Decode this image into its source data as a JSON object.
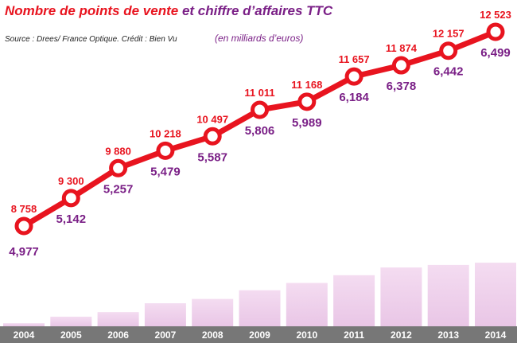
{
  "header": {
    "title_part1": "Nombre de points de vente",
    "title_part2": "et chiffre d’affaires TTC",
    "source": "Source : Drees/ France Optique. Crédit : Bien Vu",
    "unit_note": "(en milliards d’euros)"
  },
  "colors": {
    "bar": "#e9c6e6",
    "bar_top": "#f4dcf1",
    "line": "#e8141f",
    "marker_fill": "#ffffff",
    "bar_label": "#7a1f86",
    "line_label": "#e8141f",
    "axis_band": "#777777",
    "axis_text": "#ffffff"
  },
  "chart_data": {
    "type": "bar",
    "categories": [
      "2004",
      "2005",
      "2006",
      "2007",
      "2008",
      "2009",
      "2010",
      "2011",
      "2012",
      "2013",
      "2014"
    ],
    "series": [
      {
        "type": "bar",
        "values": [
          4.977,
          5.142,
          5.257,
          5.479,
          5.587,
          5.806,
          5.989,
          6.184,
          6.378,
          6.442,
          6.499
        ],
        "labels": [
          "4,977",
          "5,142",
          "5,257",
          "5,479",
          "5,587",
          "5,806",
          "5,989",
          "6,184",
          "6,378",
          "6,442",
          "6,499"
        ]
      },
      {
        "type": "line",
        "values": [
          8758,
          9300,
          9880,
          10218,
          10497,
          11011,
          11168,
          11657,
          11874,
          12157,
          12523
        ],
        "labels": [
          "8 758",
          "9 300",
          "9 880",
          "10 218",
          "10 497",
          "11 011",
          "11 168",
          "11 657",
          "11 874",
          "12 157",
          "12 523"
        ]
      }
    ],
    "title": "Nombre de points de vente et chiffre d’affaires TTC",
    "xlabel": "",
    "ylabel": "",
    "grid": false,
    "legend": "none"
  }
}
